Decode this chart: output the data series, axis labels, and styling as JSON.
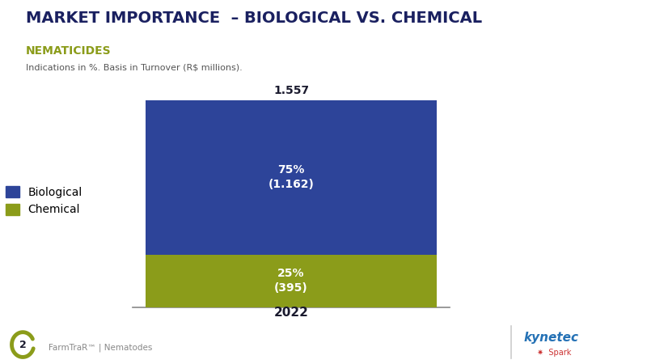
{
  "title_main": "MARKET IMPORTANCE  – BIOLOGICAL VS. CHEMICAL",
  "title_sub": "NEMATICIDES",
  "subtitle_note": "Indications in %. Basis in Turnover (R$ millions).",
  "background_color": "#ffffff",
  "chemical_value": 395,
  "biological_value": 1162,
  "total_value": 1557,
  "chemical_label": "25%\n(395)",
  "biological_label": "75%\n(1.162)",
  "total_label": "1.557",
  "bar_color_biological": "#2d4499",
  "bar_color_chemical": "#8b9c1a",
  "legend_biological": "Biological",
  "legend_chemical": "Chemical",
  "footer_left": "FarmTraR™ | Nematodes",
  "footer_page": "2",
  "font_color_white": "#ffffff",
  "font_color_dark": "#1a1a2e",
  "title_color": "#1a2060",
  "sub_color": "#8b9c1a",
  "note_color": "#555555",
  "footer_color": "#888888",
  "separator_color": "#cccccc",
  "kynetec_color": "#2471b5",
  "spark_color": "#cc3333",
  "bar_width": 0.45,
  "deco_outer_color": "#5ab4c5",
  "deco_inner_color": "#8db832",
  "deco_grad_color": "#7bc4a0"
}
